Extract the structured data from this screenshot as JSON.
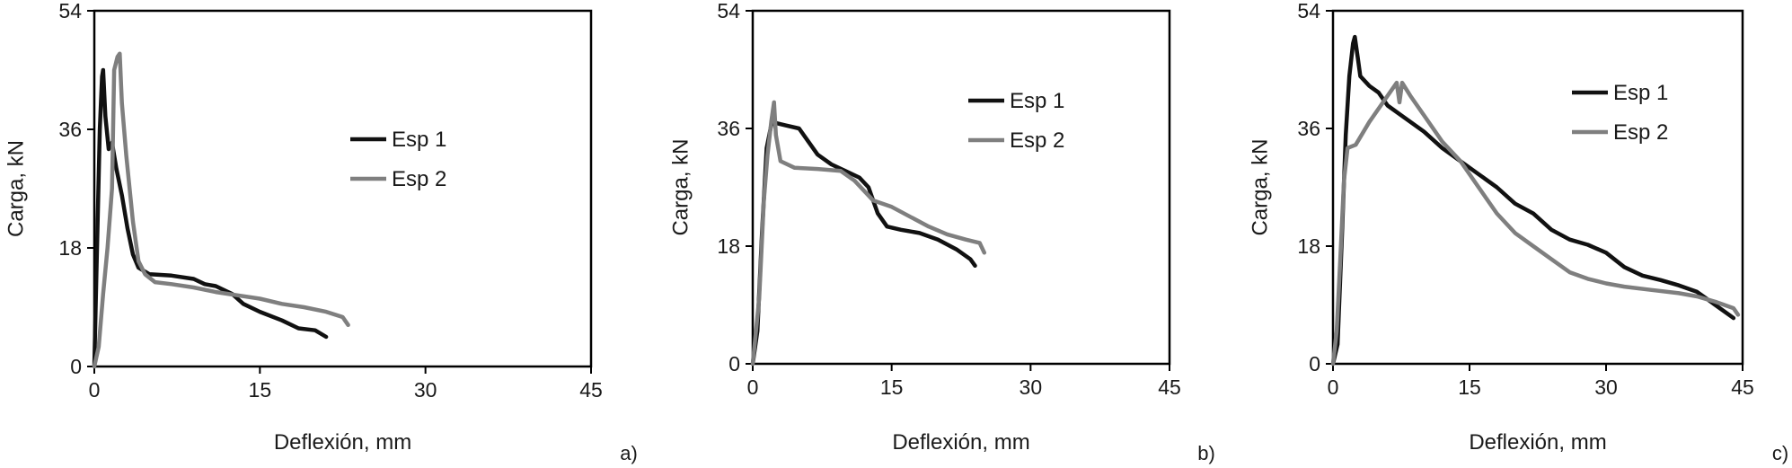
{
  "colors": {
    "esp1": "#111111",
    "esp2": "#7f7f7f"
  },
  "chart_data": [
    {
      "type": "line",
      "panel_label": "a)",
      "xlabel": "Deflexión, mm",
      "ylabel": "Carga, kN",
      "xlim": [
        0,
        45
      ],
      "ylim": [
        0,
        54
      ],
      "xticks": [
        "0",
        "15",
        "30",
        "45"
      ],
      "yticks": [
        "0",
        "18",
        "36",
        "54"
      ],
      "legend_position": "right-middle",
      "series": [
        {
          "name": "Esp 1",
          "color": "#111111",
          "points": [
            [
              0,
              0
            ],
            [
              0.2,
              15
            ],
            [
              0.5,
              36
            ],
            [
              0.7,
              44
            ],
            [
              0.8,
              45
            ],
            [
              1.0,
              38
            ],
            [
              1.3,
              33
            ],
            [
              1.6,
              34
            ],
            [
              2.0,
              30
            ],
            [
              2.5,
              26
            ],
            [
              3.0,
              21
            ],
            [
              3.5,
              17
            ],
            [
              4.0,
              15
            ],
            [
              5.0,
              14
            ],
            [
              7.0,
              13.8
            ],
            [
              9.0,
              13.3
            ],
            [
              10.0,
              12.5
            ],
            [
              11.0,
              12.2
            ],
            [
              12.5,
              11.0
            ],
            [
              13.5,
              9.5
            ],
            [
              15.0,
              8.3
            ],
            [
              17.0,
              7.0
            ],
            [
              18.5,
              5.8
            ],
            [
              20.0,
              5.5
            ],
            [
              21.0,
              4.5
            ]
          ]
        },
        {
          "name": "Esp 2",
          "color": "#7f7f7f",
          "points": [
            [
              0,
              0
            ],
            [
              0.4,
              3
            ],
            [
              0.8,
              11
            ],
            [
              1.2,
              18
            ],
            [
              1.6,
              27
            ],
            [
              1.8,
              45
            ],
            [
              2.1,
              47
            ],
            [
              2.3,
              47.5
            ],
            [
              2.5,
              40
            ],
            [
              2.9,
              32
            ],
            [
              3.5,
              22
            ],
            [
              4.0,
              16
            ],
            [
              4.6,
              14
            ],
            [
              5.5,
              12.8
            ],
            [
              7.0,
              12.5
            ],
            [
              9.0,
              12.0
            ],
            [
              11.0,
              11.3
            ],
            [
              13.0,
              10.8
            ],
            [
              15.0,
              10.3
            ],
            [
              17.0,
              9.5
            ],
            [
              19.0,
              9.0
            ],
            [
              21.0,
              8.3
            ],
            [
              22.5,
              7.5
            ],
            [
              23.0,
              6.3
            ]
          ]
        }
      ]
    },
    {
      "type": "line",
      "panel_label": "b)",
      "xlabel": "Deflexión, mm",
      "ylabel": "Carga, kN",
      "xlim": [
        0,
        45
      ],
      "ylim": [
        0,
        54
      ],
      "xticks": [
        "0",
        "15",
        "30",
        "45"
      ],
      "yticks": [
        "0",
        "18",
        "36",
        "54"
      ],
      "legend_position": "top-right",
      "series": [
        {
          "name": "Esp 1",
          "color": "#111111",
          "points": [
            [
              0,
              0
            ],
            [
              0.5,
              5
            ],
            [
              1.0,
              20
            ],
            [
              1.5,
              33
            ],
            [
              2.0,
              36.5
            ],
            [
              2.3,
              37
            ],
            [
              2.6,
              36.8
            ],
            [
              3.5,
              36.5
            ],
            [
              5.0,
              36.0
            ],
            [
              6.0,
              34
            ],
            [
              7.0,
              32
            ],
            [
              8.5,
              30.5
            ],
            [
              10.0,
              29.5
            ],
            [
              11.5,
              28.5
            ],
            [
              12.5,
              27
            ],
            [
              13.5,
              23
            ],
            [
              14.5,
              21
            ],
            [
              16.0,
              20.5
            ],
            [
              18.0,
              20.0
            ],
            [
              20.0,
              19.0
            ],
            [
              22.0,
              17.5
            ],
            [
              23.5,
              16.0
            ],
            [
              24.0,
              15.0
            ]
          ]
        },
        {
          "name": "Esp 2",
          "color": "#7f7f7f",
          "points": [
            [
              0,
              0
            ],
            [
              0.7,
              10
            ],
            [
              1.2,
              25
            ],
            [
              1.6,
              32
            ],
            [
              2.0,
              37
            ],
            [
              2.3,
              40
            ],
            [
              2.5,
              35
            ],
            [
              3.0,
              31
            ],
            [
              4.5,
              30
            ],
            [
              7.0,
              29.8
            ],
            [
              9.5,
              29.5
            ],
            [
              11.0,
              28
            ],
            [
              13.0,
              25
            ],
            [
              15.0,
              24
            ],
            [
              17.0,
              22.5
            ],
            [
              19.0,
              21
            ],
            [
              21.0,
              19.8
            ],
            [
              23.0,
              19
            ],
            [
              24.5,
              18.5
            ],
            [
              25.0,
              17.0
            ]
          ]
        }
      ]
    },
    {
      "type": "line",
      "panel_label": "c)",
      "xlabel": "Deflexión, mm",
      "ylabel": "Carga, kN",
      "xlim": [
        0,
        45
      ],
      "ylim": [
        0,
        54
      ],
      "xticks": [
        "0",
        "15",
        "30",
        "45"
      ],
      "yticks": [
        "0",
        "18",
        "36",
        "54"
      ],
      "legend_position": "top-right",
      "series": [
        {
          "name": "Esp 1",
          "color": "#111111",
          "points": [
            [
              0,
              0
            ],
            [
              0.5,
              3
            ],
            [
              1.0,
              20
            ],
            [
              1.4,
              35
            ],
            [
              1.8,
              44
            ],
            [
              2.2,
              49
            ],
            [
              2.4,
              50
            ],
            [
              2.7,
              47
            ],
            [
              3.0,
              44
            ],
            [
              4.0,
              42.5
            ],
            [
              5.0,
              41.5
            ],
            [
              6.0,
              39.5
            ],
            [
              8.0,
              37.5
            ],
            [
              10.0,
              35.5
            ],
            [
              12.0,
              33
            ],
            [
              14.0,
              31
            ],
            [
              16.0,
              29
            ],
            [
              18.0,
              27
            ],
            [
              20.0,
              24.5
            ],
            [
              22.0,
              23
            ],
            [
              24.0,
              20.5
            ],
            [
              26.0,
              19
            ],
            [
              28.0,
              18.2
            ],
            [
              30.0,
              17
            ],
            [
              32.0,
              14.8
            ],
            [
              34.0,
              13.5
            ],
            [
              36.0,
              12.8
            ],
            [
              38.0,
              12.0
            ],
            [
              40.0,
              11.0
            ],
            [
              42.0,
              9.0
            ],
            [
              44.0,
              7.0
            ]
          ]
        },
        {
          "name": "Esp 2",
          "color": "#7f7f7f",
          "points": [
            [
              0,
              0
            ],
            [
              0.4,
              5
            ],
            [
              0.8,
              16
            ],
            [
              1.2,
              28
            ],
            [
              1.6,
              33
            ],
            [
              2.5,
              33.5
            ],
            [
              4.0,
              37
            ],
            [
              5.5,
              40
            ],
            [
              6.5,
              42
            ],
            [
              7.0,
              43
            ],
            [
              7.3,
              40
            ],
            [
              7.6,
              43
            ],
            [
              8.5,
              41
            ],
            [
              10.0,
              38
            ],
            [
              12.0,
              34
            ],
            [
              14.0,
              31
            ],
            [
              16.0,
              27
            ],
            [
              18.0,
              23
            ],
            [
              20.0,
              20
            ],
            [
              22.0,
              18
            ],
            [
              24.0,
              16
            ],
            [
              26.0,
              14
            ],
            [
              28.0,
              13
            ],
            [
              30.0,
              12.3
            ],
            [
              32.0,
              11.8
            ],
            [
              35.0,
              11.3
            ],
            [
              38.0,
              10.8
            ],
            [
              40.0,
              10.3
            ],
            [
              42.0,
              9.5
            ],
            [
              44.0,
              8.5
            ],
            [
              44.5,
              7.5
            ]
          ]
        }
      ]
    }
  ]
}
